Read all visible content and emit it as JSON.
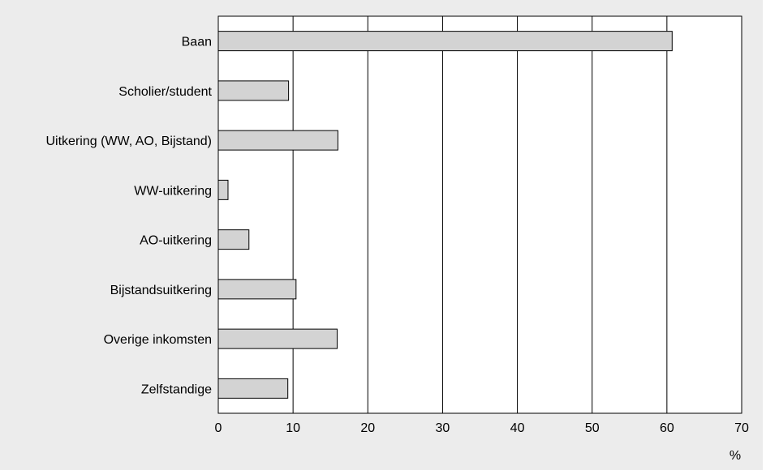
{
  "chart_data": {
    "type": "bar",
    "orientation": "horizontal",
    "categories": [
      "Baan",
      "Scholier/student",
      "Uitkering (WW, AO, Bijstand)",
      "WW-uitkering",
      "AO-uitkering",
      "Bijstandsuitkering",
      "Overige inkomsten",
      "Zelfstandige"
    ],
    "values": [
      60.7,
      9.4,
      16.0,
      1.3,
      4.1,
      10.4,
      15.9,
      9.3
    ],
    "xlim": [
      0,
      70
    ],
    "xticks": [
      "0",
      "10",
      "20",
      "30",
      "40",
      "50",
      "60",
      "70"
    ],
    "xunit": "%",
    "grid": "vertical",
    "legend": "none",
    "colors": {
      "bar_fill": "#d3d3d3",
      "bar_stroke": "#000000",
      "plot_bg": "#ffffff",
      "panel_bg": "#ececec"
    }
  }
}
